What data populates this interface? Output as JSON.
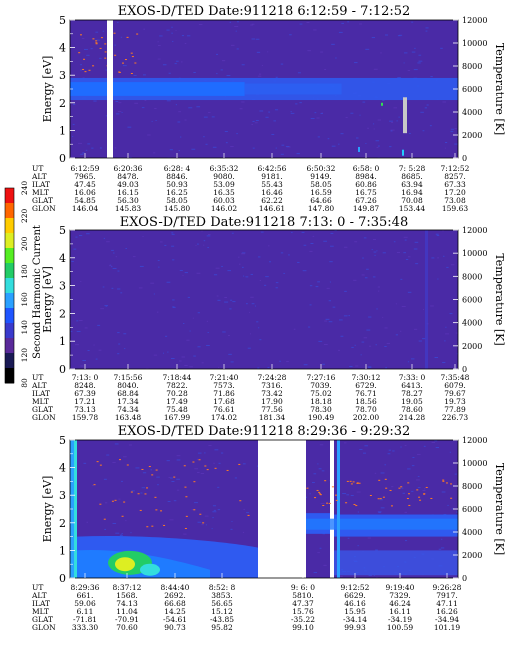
{
  "figure": {
    "colorbar": {
      "label": "Second Harmonic Current",
      "ticks": [
        "80",
        "120",
        "140",
        "160",
        "180",
        "200",
        "220",
        "240"
      ],
      "colors": [
        "#000000",
        "#1a1a55",
        "#5a2a9a",
        "#3a3acc",
        "#1f55ff",
        "#2aa0ff",
        "#33dddd",
        "#22cc66",
        "#55ee22",
        "#ddee22",
        "#ffcc00",
        "#ff6600",
        "#ee1111"
      ]
    },
    "ephemeris_labels": [
      "UT",
      "ALT",
      "ILAT",
      "MLT",
      "GLAT",
      "GLON"
    ]
  },
  "chart_data": [
    {
      "type": "heatmap",
      "title": "EXOS-D/TED   Date:911218   6:12:59 - 7:12:52",
      "ylabel": "Energy [eV]",
      "ylabel_right": "Temperature [K]",
      "ylim": [
        0,
        5
      ],
      "ylim_right": [
        0,
        12000
      ],
      "yticks": [
        "0",
        "1",
        "2",
        "3",
        "4",
        "5"
      ],
      "yticks_right": [
        "0",
        "2000",
        "4000",
        "6000",
        "8000",
        "10000",
        "12000"
      ],
      "ephemeris": {
        "UT": [
          "6:12:59",
          "6:20:36",
          "6:28: 4",
          "6:35:32",
          "6:42:56",
          "6:50:32",
          "6:58: 0",
          "7: 5:28",
          "7:12:52"
        ],
        "ALT": [
          "7965.",
          "8478.",
          "8846.",
          "9080.",
          "9181.",
          "9149.",
          "8984.",
          "8685.",
          "8257."
        ],
        "ILAT": [
          "47.45",
          "49.03",
          "50.93",
          "53.09",
          "55.43",
          "58.05",
          "60.86",
          "63.94",
          "67.33"
        ],
        "MLT": [
          "16.06",
          "16.15",
          "16.25",
          "16.35",
          "16.46",
          "16.59",
          "16.75",
          "16.94",
          "17.20"
        ],
        "GLAT": [
          "54.85",
          "56.30",
          "58.05",
          "60.03",
          "62.22",
          "64.66",
          "67.26",
          "70.08",
          "73.08"
        ],
        "GLON": [
          "146.04",
          "145.83",
          "145.80",
          "146.02",
          "146.61",
          "147.80",
          "149.87",
          "153.44",
          "159.63"
        ]
      }
    },
    {
      "type": "heatmap",
      "title": "EXOS-D/TED   Date:911218   7:13: 0 - 7:35:48",
      "ylabel": "Energy [eV]",
      "ylabel_right": "Temperature [K]",
      "ylim": [
        0,
        5
      ],
      "ylim_right": [
        0,
        12000
      ],
      "yticks": [
        "0",
        "1",
        "2",
        "3",
        "4",
        "5"
      ],
      "yticks_right": [
        "0",
        "2000",
        "4000",
        "6000",
        "8000",
        "10000",
        "12000"
      ],
      "ephemeris": {
        "UT": [
          "7:13: 0",
          "7:15:56",
          "7:18:44",
          "7:21:40",
          "7:24:28",
          "7:27:16",
          "7:30:12",
          "7:33: 0",
          "7:35:48"
        ],
        "ALT": [
          "8248.",
          "8040.",
          "7822.",
          "7573.",
          "7316.",
          "7039.",
          "6729.",
          "6413.",
          "6079."
        ],
        "ILAT": [
          "67.39",
          "68.84",
          "70.28",
          "71.86",
          "73.42",
          "75.02",
          "76.71",
          "78.27",
          "79.67"
        ],
        "MLT": [
          "17.21",
          "17.34",
          "17.49",
          "17.68",
          "17.90",
          "18.18",
          "18.56",
          "19.05",
          "19.73"
        ],
        "GLAT": [
          "73.13",
          "74.34",
          "75.48",
          "76.61",
          "77.56",
          "78.30",
          "78.70",
          "78.60",
          "77.89"
        ],
        "GLON": [
          "159.78",
          "163.48",
          "167.99",
          "174.02",
          "181.34",
          "190.49",
          "202.00",
          "214.28",
          "226.73"
        ]
      }
    },
    {
      "type": "heatmap",
      "title": "EXOS-D/TED   Date:911218   8:29:36 - 9:29:32",
      "ylabel": "Energy [eV]",
      "ylabel_right": "Temperature [K]",
      "ylim": [
        0,
        5
      ],
      "ylim_right": [
        0,
        12000
      ],
      "yticks": [
        "0",
        "1",
        "2",
        "3",
        "4",
        "5"
      ],
      "yticks_right": [
        "0",
        "2000",
        "4000",
        "6000",
        "8000",
        "10000",
        "12000"
      ],
      "ephemeris": {
        "UT": [
          "8:29:36",
          "8:37:12",
          "8:44:40",
          "8:52: 8",
          "",
          "9: 6: 0",
          "9:12:52",
          "9:19:40",
          "9:26:28"
        ],
        "ALT": [
          "661.",
          "1568.",
          "2692.",
          "3853.",
          "",
          "5810.",
          "6629.",
          "7329.",
          "7917."
        ],
        "ILAT": [
          "59.06",
          "74.13",
          "66.68",
          "56.65",
          "",
          "47.37",
          "46.16",
          "46.24",
          "47.11"
        ],
        "MLT": [
          "6.11",
          "11.04",
          "14.25",
          "15.12",
          "",
          "15.76",
          "15.95",
          "16.11",
          "16.26"
        ],
        "GLAT": [
          "-71.81",
          "-70.91",
          "-54.61",
          "-43.85",
          "",
          "-35.22",
          "-34.14",
          "-34.19",
          "-34.94"
        ],
        "GLON": [
          "333.30",
          "70.60",
          "90.73",
          "95.82",
          "",
          "99.10",
          "99.93",
          "100.59",
          "101.19"
        ]
      }
    }
  ]
}
